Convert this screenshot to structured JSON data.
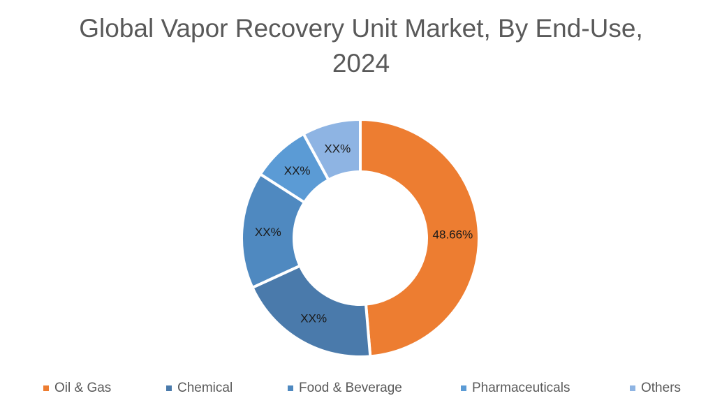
{
  "chart_data": {
    "type": "pie",
    "subtype": "donut",
    "title": "Global Vapor Recovery Unit Market, By End-Use, 2024",
    "title_lines": [
      "Global Vapor Recovery Unit Market, By End-Use,",
      "2024"
    ],
    "categories": [
      "Oil & Gas",
      "Chemical",
      "Food & Beverage",
      "Pharmaceuticals",
      "Others"
    ],
    "values": [
      48.66,
      19.5,
      15.9,
      8.0,
      7.94
    ],
    "data_labels": [
      "48.66%",
      "XX%",
      "XX%",
      "XX%",
      "XX%"
    ],
    "colors": [
      "#ED7D31",
      "#4A7AAB",
      "#4F89C0",
      "#5B9BD5",
      "#8EB4E3"
    ],
    "legend_position": "bottom",
    "start_angle_deg": 0,
    "direction": "clockwise"
  },
  "legend": {
    "items": [
      {
        "label": "Oil & Gas",
        "color": "#ED7D31"
      },
      {
        "label": "Chemical",
        "color": "#4A7AAB"
      },
      {
        "label": "Food & Beverage",
        "color": "#4F89C0"
      },
      {
        "label": "Pharmaceuticals",
        "color": "#5B9BD5"
      },
      {
        "label": "Others",
        "color": "#8EB4E3"
      }
    ]
  }
}
